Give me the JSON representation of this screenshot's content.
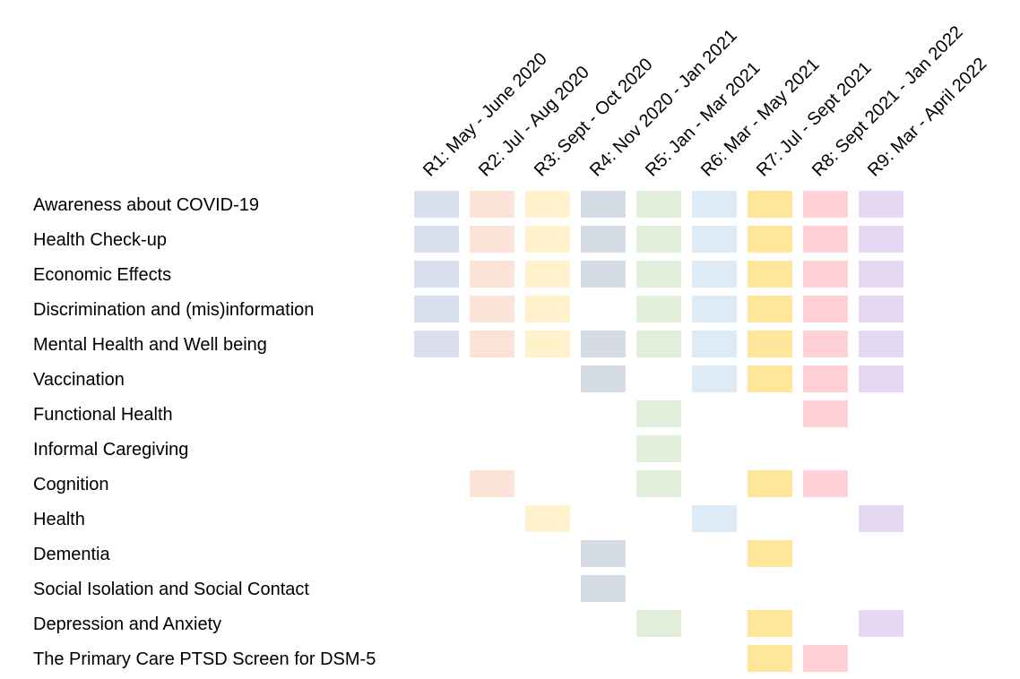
{
  "chart_data": {
    "type": "heatmap",
    "title": "",
    "xlabel": "",
    "ylabel": "",
    "columns": [
      {
        "label": "R1: May - June 2020",
        "color": "#dadff0"
      },
      {
        "label": "R2: Jul - Aug 2020",
        "color": "#fce3d8"
      },
      {
        "label": "R3: Sept - Oct 2020",
        "color": "#fff2cc"
      },
      {
        "label": "R4: Nov 2020 - Jan 2021",
        "color": "#d6dce5"
      },
      {
        "label": "R5: Jan - Mar 2021",
        "color": "#e2efda"
      },
      {
        "label": "R6: Mar - May 2021",
        "color": "#ddebf7"
      },
      {
        "label": "R7: Jul - Sept 2021",
        "color": "#ffe699"
      },
      {
        "label": "R8: Sept 2021 - Jan 2022",
        "color": "#ffd1d6"
      },
      {
        "label": "R9: Mar - April 2022",
        "color": "#e4d8f2"
      }
    ],
    "rows": [
      {
        "label": "Awareness about COVID-19",
        "values": [
          1,
          1,
          1,
          1,
          1,
          1,
          1,
          1,
          1
        ]
      },
      {
        "label": "Health Check-up",
        "values": [
          1,
          1,
          1,
          1,
          1,
          1,
          1,
          1,
          1
        ]
      },
      {
        "label": "Economic Effects",
        "values": [
          1,
          1,
          1,
          1,
          1,
          1,
          1,
          1,
          1
        ]
      },
      {
        "label": "Discrimination and (mis)information",
        "values": [
          1,
          1,
          1,
          0,
          1,
          1,
          1,
          1,
          1
        ]
      },
      {
        "label": "Mental Health and Well being",
        "values": [
          1,
          1,
          1,
          1,
          1,
          1,
          1,
          1,
          1
        ]
      },
      {
        "label": "Vaccination",
        "values": [
          0,
          0,
          0,
          1,
          0,
          1,
          1,
          1,
          1
        ]
      },
      {
        "label": "Functional Health",
        "values": [
          0,
          0,
          0,
          0,
          1,
          0,
          0,
          1,
          0
        ]
      },
      {
        "label": "Informal Caregiving",
        "values": [
          0,
          0,
          0,
          0,
          1,
          0,
          0,
          0,
          0
        ]
      },
      {
        "label": "Cognition",
        "values": [
          0,
          1,
          0,
          0,
          1,
          0,
          1,
          1,
          0
        ]
      },
      {
        "label": "Health",
        "values": [
          0,
          0,
          1,
          0,
          0,
          1,
          0,
          0,
          1
        ]
      },
      {
        "label": "Dementia",
        "values": [
          0,
          0,
          0,
          1,
          0,
          0,
          1,
          0,
          0
        ]
      },
      {
        "label": "Social Isolation and Social Contact",
        "values": [
          0,
          0,
          0,
          1,
          0,
          0,
          0,
          0,
          0
        ]
      },
      {
        "label": "Depression and Anxiety",
        "values": [
          0,
          0,
          0,
          0,
          1,
          0,
          1,
          0,
          1
        ]
      },
      {
        "label": "The Primary Care PTSD Screen for DSM-5",
        "values": [
          0,
          0,
          0,
          0,
          0,
          0,
          1,
          1,
          0
        ]
      }
    ]
  }
}
